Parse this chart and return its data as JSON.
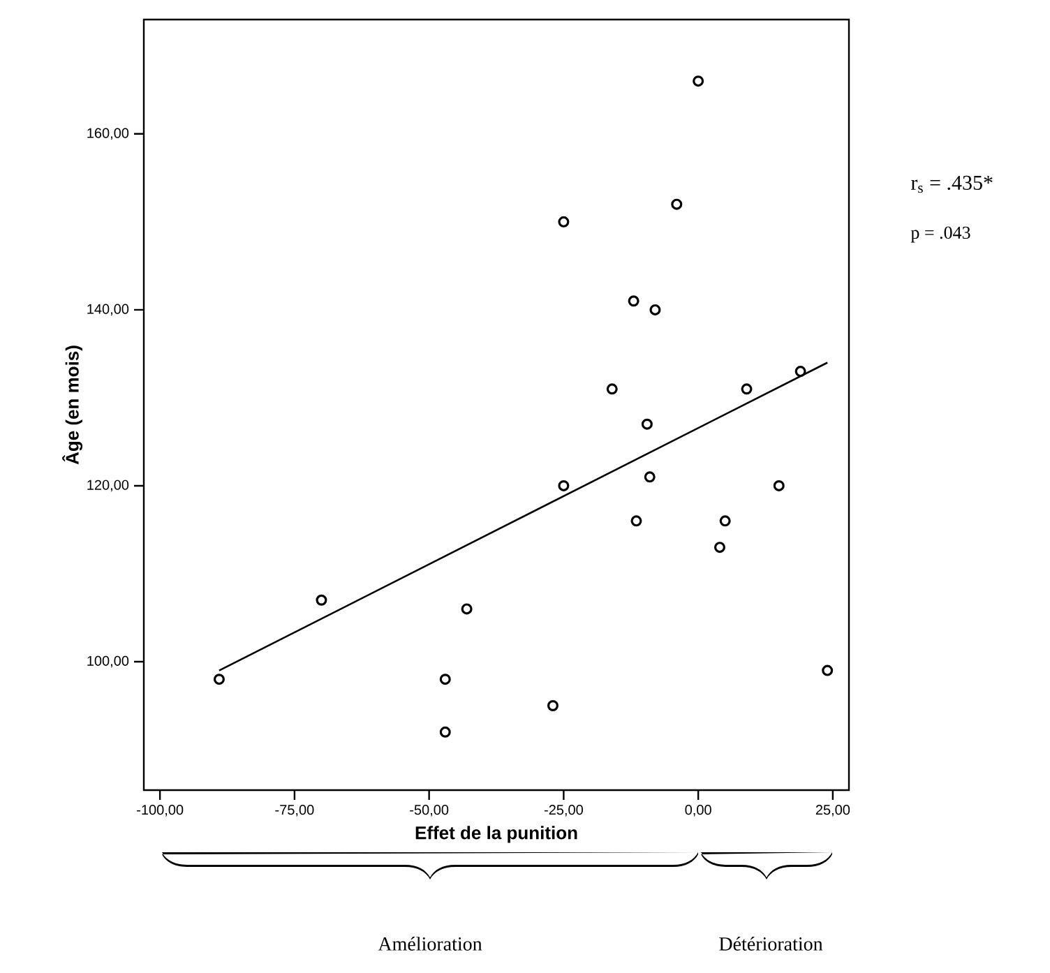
{
  "chart_data": {
    "type": "scatter",
    "xlabel": "Effet de la punition",
    "ylabel": "Âge (en mois)",
    "xlim": [
      -103,
      28
    ],
    "ylim": [
      85.4,
      173
    ],
    "xticks": [
      {
        "value": -100,
        "label": "-100,00"
      },
      {
        "value": -75,
        "label": "-75,00"
      },
      {
        "value": -50,
        "label": "-50,00"
      },
      {
        "value": -25,
        "label": "-25,00"
      },
      {
        "value": 0,
        "label": "0,00"
      },
      {
        "value": 25,
        "label": "25,00"
      }
    ],
    "yticks": [
      {
        "value": 100,
        "label": "100,00"
      },
      {
        "value": 120,
        "label": "120,00"
      },
      {
        "value": 140,
        "label": "140,00"
      },
      {
        "value": 160,
        "label": "160,00"
      }
    ],
    "grid": false,
    "marker": "circle",
    "series": [
      {
        "color": "#000000",
        "x": [
          -89,
          -70,
          -43,
          -47,
          -47,
          -27,
          -25,
          -25,
          0,
          -4,
          -12,
          -8,
          -16,
          -9.5,
          -9,
          -11.5,
          9,
          19,
          15,
          5,
          4,
          24
        ],
        "values": [
          98,
          107,
          106,
          98,
          92,
          95,
          120,
          150,
          166,
          152,
          141,
          140,
          131,
          127,
          121,
          116,
          131,
          133,
          120,
          116,
          113,
          99
        ]
      },
      {
        "type": "line",
        "color": "#000000",
        "marker": "none",
        "x": [
          -89,
          24
        ],
        "values": [
          99,
          134
        ]
      }
    ],
    "annotations": [
      "r$_{s}$ = .435*",
      "p = .043",
      "Amélioration",
      "Détérioration"
    ]
  }
}
